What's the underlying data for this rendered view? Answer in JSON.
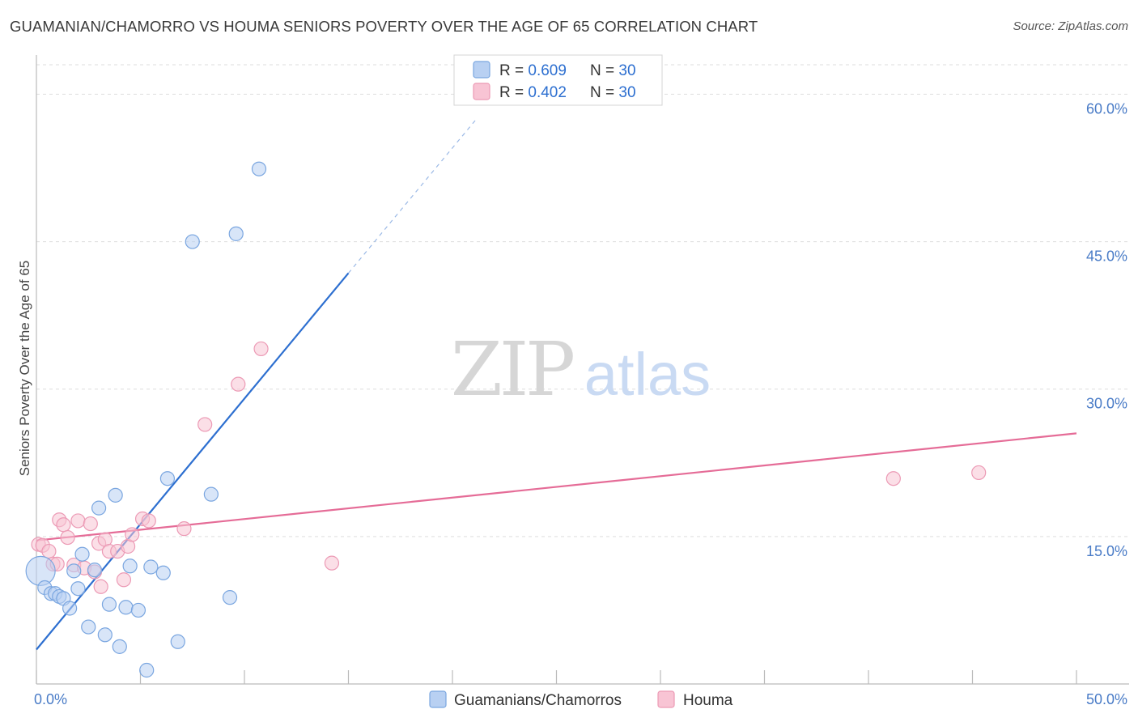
{
  "title": "GUAMANIAN/CHAMORRO VS HOUMA SENIORS POVERTY OVER THE AGE OF 65 CORRELATION CHART",
  "source": "Source: ZipAtlas.com",
  "watermark": {
    "zip": "ZIP",
    "atlas": "atlas"
  },
  "colors": {
    "blue_fill": "#b8d0f2",
    "blue_stroke": "#7aa6e0",
    "blue_line": "#2d6fd0",
    "pink_fill": "#f8c4d4",
    "pink_stroke": "#ec9ab5",
    "pink_line": "#e56c97",
    "grid": "#dddddd",
    "tick_text": "#4a7cc7"
  },
  "stats_legend": [
    {
      "r_label": "R = ",
      "r_value": "0.609",
      "n_label": "N = ",
      "n_value": "30",
      "color": "blue"
    },
    {
      "r_label": "R = ",
      "r_value": "0.402",
      "n_label": "N = ",
      "n_value": "30",
      "color": "pink"
    }
  ],
  "chart_data": {
    "type": "scatter",
    "title": "GUAMANIAN/CHAMORRO VS HOUMA SENIORS POVERTY OVER THE AGE OF 65 CORRELATION CHART",
    "xlabel": "",
    "ylabel": "Seniors Poverty Over the Age of 65",
    "xlim": [
      0,
      50
    ],
    "ylim": [
      0,
      63
    ],
    "x_tick_labels": [
      "0.0%",
      "50.0%"
    ],
    "y_ticks": [
      15,
      30,
      45,
      60
    ],
    "y_tick_labels": [
      "15.0%",
      "30.0%",
      "45.0%",
      "60.0%"
    ],
    "grid": true,
    "legend_position": "bottom",
    "series": [
      {
        "name": "Guamanians/Chamorros",
        "color": "blue",
        "points": [
          [
            0.2,
            11.5
          ],
          [
            0.4,
            9.8
          ],
          [
            0.7,
            9.2
          ],
          [
            0.9,
            9.2
          ],
          [
            1.1,
            8.9
          ],
          [
            1.3,
            8.7
          ],
          [
            1.6,
            7.7
          ],
          [
            1.8,
            11.5
          ],
          [
            2.0,
            9.7
          ],
          [
            2.2,
            13.2
          ],
          [
            2.5,
            5.8
          ],
          [
            2.8,
            11.6
          ],
          [
            3.0,
            17.9
          ],
          [
            3.3,
            5.0
          ],
          [
            3.5,
            8.1
          ],
          [
            3.8,
            19.2
          ],
          [
            4.0,
            3.8
          ],
          [
            4.3,
            7.8
          ],
          [
            4.5,
            12.0
          ],
          [
            4.9,
            7.5
          ],
          [
            5.3,
            1.4
          ],
          [
            5.5,
            11.9
          ],
          [
            6.1,
            11.3
          ],
          [
            6.3,
            20.9
          ],
          [
            6.8,
            4.3
          ],
          [
            7.5,
            45.0
          ],
          [
            8.4,
            19.3
          ],
          [
            9.3,
            8.8
          ],
          [
            9.6,
            45.8
          ],
          [
            10.7,
            52.4
          ]
        ],
        "trend": {
          "x0": 0,
          "y0": 3.5,
          "x1": 15.0,
          "y1": 41.8,
          "dashed_to_x": 21.2,
          "dashed_to_y": 57.6
        }
      },
      {
        "name": "Houma",
        "color": "pink",
        "points": [
          [
            0.1,
            14.2
          ],
          [
            0.3,
            14.1
          ],
          [
            0.6,
            13.5
          ],
          [
            0.8,
            12.2
          ],
          [
            1.0,
            12.2
          ],
          [
            1.1,
            16.7
          ],
          [
            1.3,
            16.2
          ],
          [
            1.5,
            14.9
          ],
          [
            1.8,
            12.1
          ],
          [
            2.0,
            16.6
          ],
          [
            2.3,
            11.8
          ],
          [
            2.6,
            16.3
          ],
          [
            2.8,
            11.4
          ],
          [
            3.0,
            14.3
          ],
          [
            3.1,
            9.9
          ],
          [
            3.3,
            14.7
          ],
          [
            3.5,
            13.5
          ],
          [
            3.9,
            13.5
          ],
          [
            4.2,
            10.6
          ],
          [
            4.4,
            14.0
          ],
          [
            4.6,
            15.2
          ],
          [
            5.1,
            16.8
          ],
          [
            5.4,
            16.6
          ],
          [
            7.1,
            15.8
          ],
          [
            8.1,
            26.4
          ],
          [
            9.7,
            30.5
          ],
          [
            10.8,
            34.1
          ],
          [
            14.2,
            12.3
          ],
          [
            41.2,
            20.9
          ],
          [
            45.3,
            21.5
          ]
        ],
        "trend": {
          "x0": 0,
          "y0": 14.6,
          "x1": 50,
          "y1": 25.5
        }
      }
    ]
  }
}
